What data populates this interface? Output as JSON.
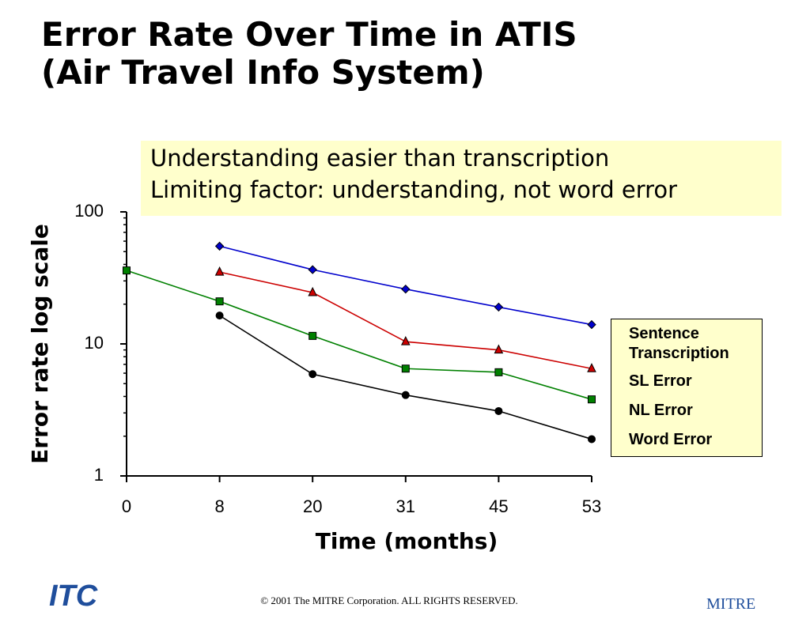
{
  "slide": {
    "title_lines": [
      "Error Rate Over Time in ATIS",
      "(Air Travel Info System)"
    ],
    "callout_lines": [
      "Understanding easier than transcription",
      "Limiting factor:  understanding, not word error"
    ],
    "footer": "© 2001 The MITRE Corporation. ALL RIGHTS RESERVED.",
    "logo_left": "ITC",
    "logo_right": "MITRE"
  },
  "chart_data": {
    "type": "line",
    "x_label": "Time (months)",
    "y_label": "Error rate log scale",
    "categories": [
      "0",
      "8",
      "20",
      "31",
      "45",
      "53"
    ],
    "ylim": [
      1,
      100
    ],
    "yticks": [
      1,
      10,
      100
    ],
    "ylog": true,
    "minor_yticks": [
      2,
      3,
      4,
      5,
      6,
      7,
      8,
      9,
      20,
      30,
      40,
      50,
      60,
      70,
      80,
      90
    ],
    "series": [
      {
        "name": "Sentence Transcription",
        "color": "#0000cc",
        "marker": "diamond",
        "values": [
          null,
          55,
          36.5,
          26,
          19,
          14
        ]
      },
      {
        "name": "SL Error",
        "color": "#cc0000",
        "marker": "triangle",
        "values": [
          null,
          35,
          24.5,
          10.4,
          9,
          6.5
        ]
      },
      {
        "name": "NL Error",
        "color": "#008000",
        "marker": "square",
        "values": [
          36,
          21,
          11.5,
          6.5,
          6.1,
          3.8
        ]
      },
      {
        "name": "Word  Error",
        "color": "#000000",
        "marker": "circle",
        "values": [
          null,
          16.4,
          5.9,
          4.1,
          3.1,
          1.9
        ]
      }
    ]
  }
}
